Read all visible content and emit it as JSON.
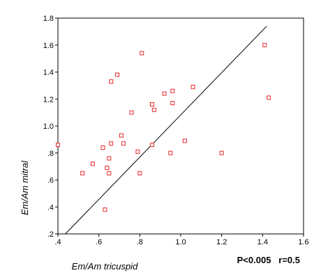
{
  "chart_data": {
    "type": "scatter",
    "title": "",
    "xlabel": "Em/Am tricuspid",
    "ylabel": "Em/Am mitral",
    "xlim": [
      0.4,
      1.6
    ],
    "ylim": [
      0.2,
      1.8
    ],
    "x_ticks": [
      0.4,
      0.6,
      0.8,
      1.0,
      1.2,
      1.4,
      1.6
    ],
    "x_tick_labels": [
      ".4",
      ".6",
      ".8",
      "1.0",
      "1.2",
      "1.4",
      "1.6"
    ],
    "y_ticks": [
      0.2,
      0.4,
      0.6,
      0.8,
      1.0,
      1.2,
      1.4,
      1.6,
      1.8
    ],
    "y_tick_labels": [
      ".2",
      ".4",
      ".6",
      ".8",
      "1.0",
      "1.2",
      "1.4",
      "1.6",
      "1.8"
    ],
    "grid": false,
    "marker_color": "#e8262a",
    "line_color": "#000000",
    "points": [
      {
        "x": 0.4,
        "y": 0.86
      },
      {
        "x": 0.52,
        "y": 0.65
      },
      {
        "x": 0.57,
        "y": 0.72
      },
      {
        "x": 0.62,
        "y": 0.84
      },
      {
        "x": 0.63,
        "y": 0.38
      },
      {
        "x": 0.64,
        "y": 0.69
      },
      {
        "x": 0.65,
        "y": 0.65
      },
      {
        "x": 0.65,
        "y": 0.76
      },
      {
        "x": 0.66,
        "y": 0.87
      },
      {
        "x": 0.66,
        "y": 1.33
      },
      {
        "x": 0.69,
        "y": 1.38
      },
      {
        "x": 0.71,
        "y": 0.93
      },
      {
        "x": 0.72,
        "y": 0.87
      },
      {
        "x": 0.76,
        "y": 1.1
      },
      {
        "x": 0.79,
        "y": 0.81
      },
      {
        "x": 0.8,
        "y": 0.65
      },
      {
        "x": 0.81,
        "y": 1.54
      },
      {
        "x": 0.86,
        "y": 0.86
      },
      {
        "x": 0.86,
        "y": 1.16
      },
      {
        "x": 0.87,
        "y": 1.12
      },
      {
        "x": 0.92,
        "y": 1.24
      },
      {
        "x": 0.95,
        "y": 0.8
      },
      {
        "x": 0.96,
        "y": 1.26
      },
      {
        "x": 0.96,
        "y": 1.17
      },
      {
        "x": 1.02,
        "y": 0.89
      },
      {
        "x": 1.06,
        "y": 1.29
      },
      {
        "x": 1.2,
        "y": 0.8
      },
      {
        "x": 1.41,
        "y": 1.6
      },
      {
        "x": 1.43,
        "y": 1.21
      }
    ],
    "fit_line": {
      "x": [
        0.43,
        1.42
      ],
      "y": [
        0.19,
        1.74
      ]
    },
    "annotation": "P<0.005   r=0.5"
  }
}
